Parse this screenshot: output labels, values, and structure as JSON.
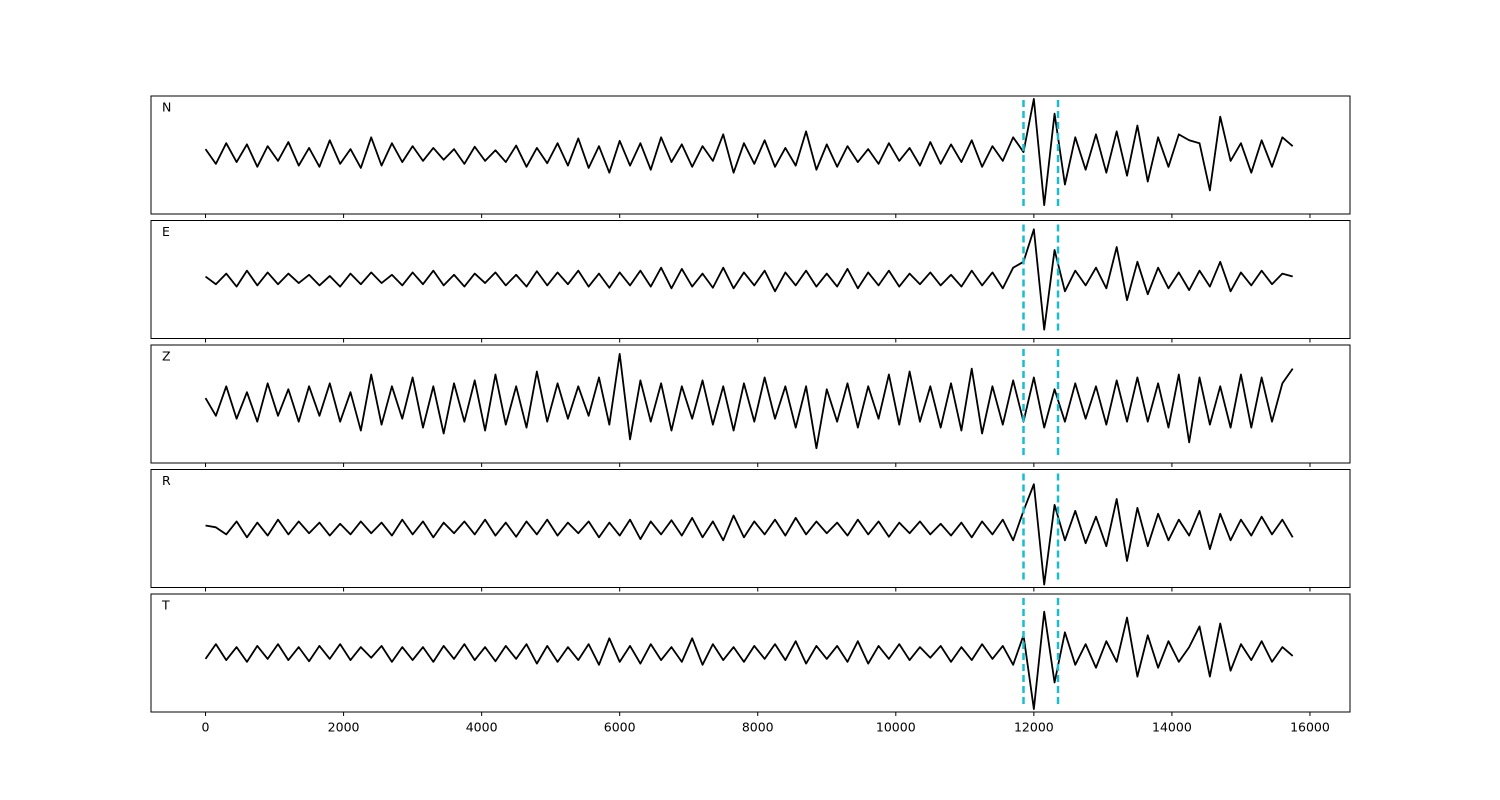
{
  "chart_data": {
    "type": "line",
    "layout": "stacked",
    "x": [
      0,
      150,
      300,
      450,
      600,
      750,
      900,
      1050,
      1200,
      1350,
      1500,
      1650,
      1800,
      1950,
      2100,
      2250,
      2400,
      2550,
      2700,
      2850,
      3000,
      3150,
      3300,
      3450,
      3600,
      3750,
      3900,
      4050,
      4200,
      4350,
      4500,
      4650,
      4800,
      4950,
      5100,
      5250,
      5400,
      5550,
      5700,
      5850,
      6000,
      6150,
      6300,
      6450,
      6600,
      6750,
      6900,
      7050,
      7200,
      7350,
      7500,
      7650,
      7800,
      7950,
      8100,
      8250,
      8400,
      8550,
      8700,
      8850,
      9000,
      9150,
      9300,
      9450,
      9600,
      9750,
      9900,
      10050,
      10200,
      10350,
      10500,
      10650,
      10800,
      10950,
      11100,
      11250,
      11400,
      11550,
      11700,
      11850,
      12000,
      12150,
      12300,
      12450,
      12600,
      12750,
      12900,
      13050,
      13200,
      13350,
      13500,
      13650,
      13800,
      13950,
      14100,
      14250,
      14400,
      14550,
      14700,
      14850,
      15000,
      15150,
      15300,
      15450,
      15600,
      15750
    ],
    "xlim": [
      -790,
      16580
    ],
    "xticks": [
      0,
      2000,
      4000,
      6000,
      8000,
      10000,
      12000,
      14000,
      16000
    ],
    "ylim": [
      -1,
      1
    ],
    "vlines": [
      11850,
      12350
    ],
    "vline_color": "#17becf",
    "series": [
      {
        "name": "N",
        "color": "#000000",
        "values": [
          0.1,
          -0.15,
          0.2,
          -0.12,
          0.18,
          -0.2,
          0.15,
          -0.1,
          0.22,
          -0.18,
          0.12,
          -0.2,
          0.25,
          -0.15,
          0.1,
          -0.22,
          0.3,
          -0.18,
          0.2,
          -0.12,
          0.15,
          -0.1,
          0.12,
          -0.08,
          0.1,
          -0.15,
          0.14,
          -0.1,
          0.08,
          -0.12,
          0.16,
          -0.2,
          0.12,
          -0.14,
          0.2,
          -0.18,
          0.28,
          -0.22,
          0.15,
          -0.3,
          0.24,
          -0.18,
          0.2,
          -0.25,
          0.3,
          -0.12,
          0.18,
          -0.2,
          0.15,
          -0.1,
          0.35,
          -0.3,
          0.2,
          -0.15,
          0.25,
          -0.2,
          0.12,
          -0.18,
          0.4,
          -0.25,
          0.18,
          -0.2,
          0.15,
          -0.12,
          0.1,
          -0.15,
          0.2,
          -0.1,
          0.12,
          -0.18,
          0.22,
          -0.15,
          0.18,
          -0.12,
          0.25,
          -0.2,
          0.15,
          -0.1,
          0.3,
          0.05,
          0.95,
          -0.85,
          0.7,
          -0.5,
          0.3,
          -0.25,
          0.35,
          -0.3,
          0.4,
          -0.35,
          0.5,
          -0.45,
          0.3,
          -0.2,
          0.35,
          0.25,
          0.2,
          -0.6,
          0.65,
          -0.1,
          0.2,
          -0.3,
          0.25,
          -0.2,
          0.3,
          0.15
        ]
      },
      {
        "name": "E",
        "color": "#000000",
        "values": [
          0.05,
          -0.08,
          0.1,
          -0.12,
          0.15,
          -0.1,
          0.12,
          -0.08,
          0.1,
          -0.06,
          0.08,
          -0.1,
          0.06,
          -0.12,
          0.1,
          -0.08,
          0.12,
          -0.06,
          0.08,
          -0.1,
          0.12,
          -0.08,
          0.15,
          -0.1,
          0.08,
          -0.12,
          0.1,
          -0.06,
          0.12,
          -0.1,
          0.08,
          -0.12,
          0.14,
          -0.1,
          0.12,
          -0.08,
          0.15,
          -0.12,
          0.1,
          -0.14,
          0.12,
          -0.1,
          0.15,
          -0.12,
          0.2,
          -0.15,
          0.18,
          -0.12,
          0.1,
          -0.14,
          0.2,
          -0.15,
          0.12,
          -0.1,
          0.15,
          -0.2,
          0.12,
          -0.1,
          0.15,
          -0.12,
          0.1,
          -0.12,
          0.18,
          -0.15,
          0.12,
          -0.1,
          0.15,
          -0.12,
          0.1,
          -0.08,
          0.12,
          -0.1,
          0.08,
          -0.12,
          0.15,
          -0.1,
          0.12,
          -0.15,
          0.2,
          0.3,
          0.85,
          -0.85,
          0.5,
          -0.2,
          0.15,
          -0.1,
          0.2,
          -0.15,
          0.55,
          -0.35,
          0.3,
          -0.25,
          0.2,
          -0.15,
          0.12,
          -0.18,
          0.15,
          -0.12,
          0.3,
          -0.2,
          0.12,
          -0.1,
          0.15,
          -0.08,
          0.1,
          0.05
        ]
      },
      {
        "name": "Z",
        "color": "#000000",
        "values": [
          0.1,
          -0.2,
          0.3,
          -0.25,
          0.2,
          -0.3,
          0.35,
          -0.2,
          0.25,
          -0.3,
          0.3,
          -0.2,
          0.35,
          -0.3,
          0.2,
          -0.45,
          0.5,
          -0.35,
          0.3,
          -0.25,
          0.45,
          -0.4,
          0.3,
          -0.5,
          0.35,
          -0.3,
          0.4,
          -0.45,
          0.5,
          -0.35,
          0.3,
          -0.4,
          0.55,
          -0.3,
          0.35,
          -0.25,
          0.3,
          -0.2,
          0.45,
          -0.35,
          0.85,
          -0.6,
          0.4,
          -0.3,
          0.35,
          -0.45,
          0.3,
          -0.25,
          0.4,
          -0.35,
          0.3,
          -0.45,
          0.35,
          -0.3,
          0.45,
          -0.25,
          0.3,
          -0.4,
          0.3,
          -0.75,
          0.25,
          -0.3,
          0.35,
          -0.4,
          0.3,
          -0.25,
          0.5,
          -0.35,
          0.55,
          -0.3,
          0.3,
          -0.4,
          0.35,
          -0.45,
          0.6,
          -0.5,
          0.3,
          -0.35,
          0.4,
          -0.3,
          0.45,
          -0.4,
          0.25,
          -0.3,
          0.35,
          -0.25,
          0.3,
          -0.35,
          0.4,
          -0.3,
          0.45,
          -0.3,
          0.35,
          -0.4,
          0.5,
          -0.65,
          0.45,
          -0.35,
          0.3,
          -0.4,
          0.5,
          -0.4,
          0.45,
          -0.3,
          0.35,
          0.6
        ]
      },
      {
        "name": "R",
        "color": "#000000",
        "values": [
          0.05,
          0.02,
          -0.1,
          0.12,
          -0.15,
          0.1,
          -0.12,
          0.15,
          -0.1,
          0.12,
          -0.08,
          0.1,
          -0.12,
          0.08,
          -0.1,
          0.12,
          -0.08,
          0.1,
          -0.12,
          0.15,
          -0.1,
          0.12,
          -0.15,
          0.1,
          -0.08,
          0.12,
          -0.1,
          0.15,
          -0.12,
          0.1,
          -0.14,
          0.12,
          -0.1,
          0.15,
          -0.12,
          0.1,
          -0.08,
          0.12,
          -0.15,
          0.1,
          -0.12,
          0.15,
          -0.18,
          0.12,
          -0.1,
          0.14,
          -0.12,
          0.18,
          -0.15,
          0.12,
          -0.2,
          0.22,
          -0.15,
          0.12,
          -0.1,
          0.15,
          -0.12,
          0.18,
          -0.1,
          0.12,
          -0.08,
          0.1,
          -0.12,
          0.15,
          -0.1,
          0.12,
          -0.14,
          0.1,
          -0.08,
          0.12,
          -0.1,
          0.08,
          -0.12,
          0.1,
          -0.15,
          0.12,
          -0.1,
          0.15,
          -0.2,
          0.3,
          0.75,
          -0.95,
          0.4,
          -0.2,
          0.3,
          -0.25,
          0.2,
          -0.3,
          0.5,
          -0.55,
          0.35,
          -0.3,
          0.25,
          -0.2,
          0.15,
          -0.12,
          0.3,
          -0.35,
          0.25,
          -0.2,
          0.15,
          -0.12,
          0.2,
          -0.1,
          0.15,
          -0.15
        ]
      },
      {
        "name": "T",
        "color": "#000000",
        "values": [
          -0.1,
          0.15,
          -0.12,
          0.1,
          -0.15,
          0.12,
          -0.1,
          0.15,
          -0.12,
          0.1,
          -0.14,
          0.12,
          -0.1,
          0.15,
          -0.12,
          0.1,
          -0.08,
          0.12,
          -0.15,
          0.1,
          -0.12,
          0.1,
          -0.15,
          0.12,
          -0.1,
          0.15,
          -0.12,
          0.1,
          -0.14,
          0.12,
          -0.1,
          0.15,
          -0.18,
          0.12,
          -0.15,
          0.1,
          -0.12,
          0.15,
          -0.2,
          0.25,
          -0.15,
          0.12,
          -0.18,
          0.15,
          -0.12,
          0.1,
          -0.15,
          0.25,
          -0.2,
          0.15,
          -0.12,
          0.1,
          -0.15,
          0.12,
          -0.1,
          0.15,
          -0.12,
          0.2,
          -0.18,
          0.12,
          -0.1,
          0.12,
          -0.15,
          0.2,
          -0.18,
          0.12,
          -0.1,
          0.15,
          -0.12,
          0.1,
          -0.08,
          0.12,
          -0.15,
          0.1,
          -0.12,
          0.15,
          -0.1,
          0.12,
          -0.2,
          0.3,
          -0.95,
          0.7,
          -0.5,
          0.35,
          -0.2,
          0.15,
          -0.25,
          0.2,
          -0.15,
          0.6,
          -0.4,
          0.3,
          -0.25,
          0.2,
          -0.15,
          0.1,
          0.45,
          -0.4,
          0.5,
          -0.3,
          0.15,
          -0.12,
          0.2,
          -0.15,
          0.1,
          -0.05
        ]
      }
    ]
  }
}
